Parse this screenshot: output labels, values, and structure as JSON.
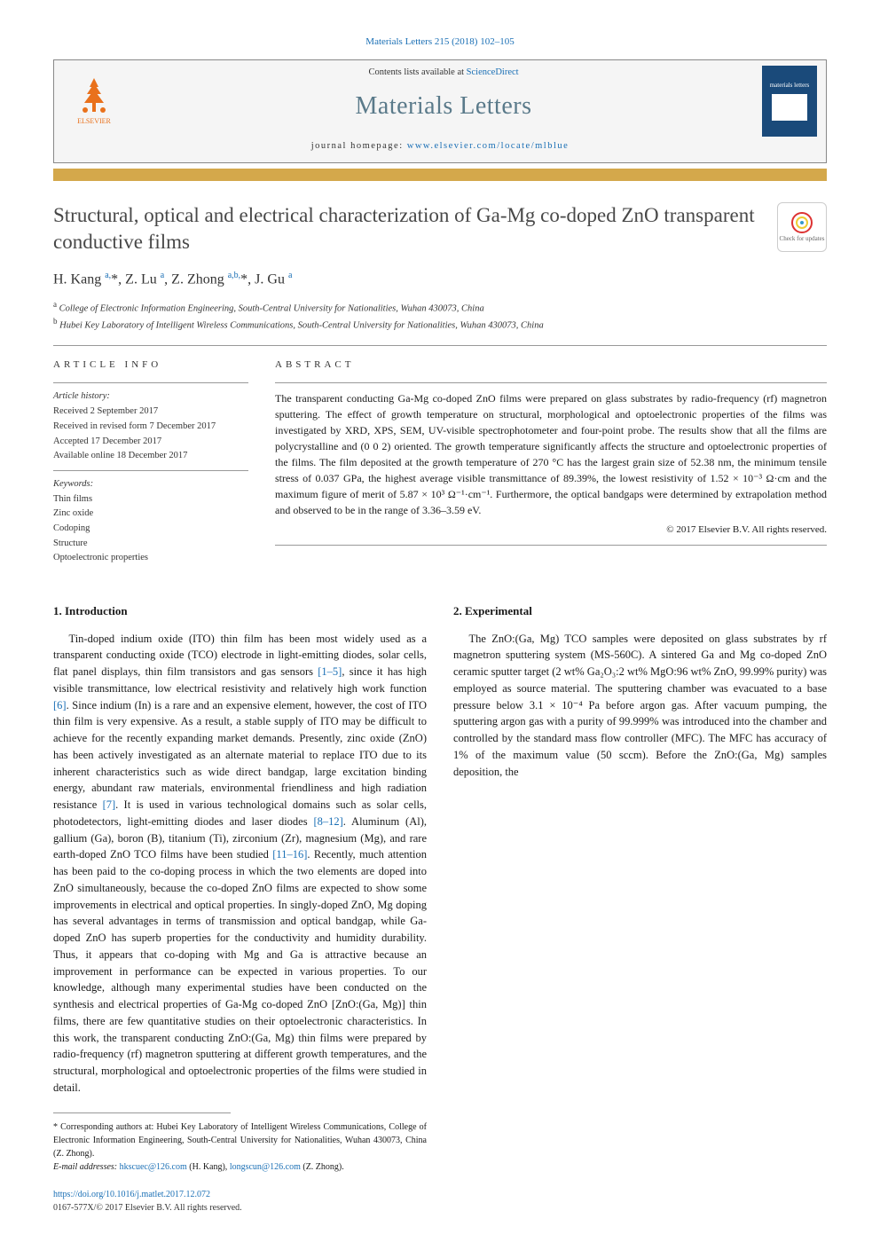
{
  "citation": "Materials Letters 215 (2018) 102–105",
  "header": {
    "contents_prefix": "Contents lists available at ",
    "contents_link": "ScienceDirect",
    "journal_name": "Materials Letters",
    "homepage_prefix": "journal homepage: ",
    "homepage_url": "www.elsevier.com/locate/mlblue",
    "publisher_name": "ELSEVIER",
    "cover_label": "materials letters"
  },
  "article": {
    "title": "Structural, optical and electrical characterization of Ga-Mg co-doped ZnO transparent conductive films",
    "crossmark_label": "Check for updates"
  },
  "authors_html": "H. Kang <sup>a,</sup>*, Z. Lu <sup>a</sup>, Z. Zhong <sup>a,b,</sup>*, J. Gu <sup>a</sup>",
  "affiliations": {
    "a": "College of Electronic Information Engineering, South-Central University for Nationalities, Wuhan 430073, China",
    "b": "Hubei Key Laboratory of Intelligent Wireless Communications, South-Central University for Nationalities, Wuhan 430073, China"
  },
  "info": {
    "heading": "article info",
    "history_label": "Article history:",
    "received": "Received 2 September 2017",
    "revised": "Received in revised form 7 December 2017",
    "accepted": "Accepted 17 December 2017",
    "online": "Available online 18 December 2017",
    "keywords_label": "Keywords:",
    "keywords": [
      "Thin films",
      "Zinc oxide",
      "Codoping",
      "Structure",
      "Optoelectronic properties"
    ]
  },
  "abstract": {
    "heading": "abstract",
    "text": "The transparent conducting Ga-Mg co-doped ZnO films were prepared on glass substrates by radio-frequency (rf) magnetron sputtering. The effect of growth temperature on structural, morphological and optoelectronic properties of the films was investigated by XRD, XPS, SEM, UV-visible spectrophotometer and four-point probe. The results show that all the films are polycrystalline and (0 0 2) oriented. The growth temperature significantly affects the structure and optoelectronic properties of the films. The film deposited at the growth temperature of 270 °C has the largest grain size of 52.38 nm, the minimum tensile stress of 0.037 GPa, the highest average visible transmittance of 89.39%, the lowest resistivity of 1.52 × 10⁻³ Ω·cm and the maximum figure of merit of 5.87 × 10³ Ω⁻¹·cm⁻¹. Furthermore, the optical bandgaps were determined by extrapolation method and observed to be in the range of 3.36–3.59 eV.",
    "copyright": "© 2017 Elsevier B.V. All rights reserved."
  },
  "sections": {
    "intro_heading": "1. Introduction",
    "intro_p1a": "Tin-doped indium oxide (ITO) thin film has been most widely used as a transparent conducting oxide (TCO) electrode in light-emitting diodes, solar cells, flat panel displays, thin film transistors and gas sensors ",
    "intro_ref1": "[1–5]",
    "intro_p1b": ", since it has high visible transmittance, low electrical resistivity and relatively high work function ",
    "intro_ref2": "[6]",
    "intro_p1c": ". Since indium (In) is a rare and an expensive element, however, the cost of ITO thin film is very expensive. As a result, a stable supply of ITO may be difficult to achieve for the recently expanding market demands. Presently, zinc oxide (ZnO) has been actively investigated as an alternate material to replace ITO due to its inherent characteristics such as wide direct bandgap, large excitation binding energy, abundant raw materials, environmental friendliness and high radiation resistance ",
    "intro_ref3": "[7]",
    "intro_p1d": ". It is used in various technological domains such as solar cells, photodetectors, light-emitting diodes and laser diodes ",
    "intro_ref4": "[8–12]",
    "intro_p1e": ". Aluminum (Al), gallium (Ga), boron (B), titanium (Ti), zirconium (Zr), magnesium (Mg), and rare earth-doped ZnO TCO films have been studied ",
    "intro_ref5": "[11–16]",
    "intro_p1f": ". Recently, much attention has been paid to the co-doping process in which the two elements are doped into ZnO simultaneously, because the co-doped ZnO films are expected to show some improvements in electrical and optical properties. In singly-doped ZnO, Mg doping has several advantages in terms of transmission and optical bandgap, while Ga-doped ZnO has superb properties for the conductivity and humidity durability. Thus, it appears that co-doping with Mg and Ga is attractive because an improvement in performance can be expected in various properties. To our knowledge, although many experimental studies have been conducted on the synthesis and electrical properties of Ga-Mg co-doped ZnO [ZnO:(Ga, Mg)] thin films, there are few quantitative studies on their optoelectronic characteristics. In this work, the transparent conducting ZnO:(Ga, Mg) thin films were prepared by radio-frequency (rf) magnetron sputtering at different growth temperatures, and the structural, morphological and optoelectronic properties of the films were studied in detail.",
    "exp_heading": "2. Experimental",
    "exp_p1": "The ZnO:(Ga, Mg) TCO samples were deposited on glass substrates by rf magnetron sputtering system (MS-560C). A sintered Ga and Mg co-doped ZnO ceramic sputter target (2 wt% Ga₂O₃:2 wt% MgO:96 wt% ZnO, 99.99% purity) was employed as source material. The sputtering chamber was evacuated to a base pressure below 3.1 × 10⁻⁴ Pa before argon gas. After vacuum pumping, the sputtering argon gas with a purity of 99.999% was introduced into the chamber and controlled by the standard mass flow controller (MFC). The MFC has accuracy of 1% of the maximum value (50 sccm). Before the ZnO:(Ga, Mg) samples deposition, the"
  },
  "footnote": {
    "corresponding": "* Corresponding authors at: Hubei Key Laboratory of Intelligent Wireless Communications, College of Electronic Information Engineering, South-Central University for Nationalities, Wuhan 430073, China (Z. Zhong).",
    "email_label": "E-mail addresses: ",
    "email1": "hkscuec@126.com",
    "email1_who": " (H. Kang), ",
    "email2": "longscun@126.com",
    "email2_who": " (Z. Zhong)."
  },
  "doi": {
    "url": "https://doi.org/10.1016/j.matlet.2017.12.072",
    "issn_line": "0167-577X/© 2017 Elsevier B.V. All rights reserved."
  },
  "colors": {
    "link": "#1a6fb5",
    "gold": "#d4a84b",
    "orange": "#e9711c",
    "journal_title": "#5a7a8a"
  }
}
